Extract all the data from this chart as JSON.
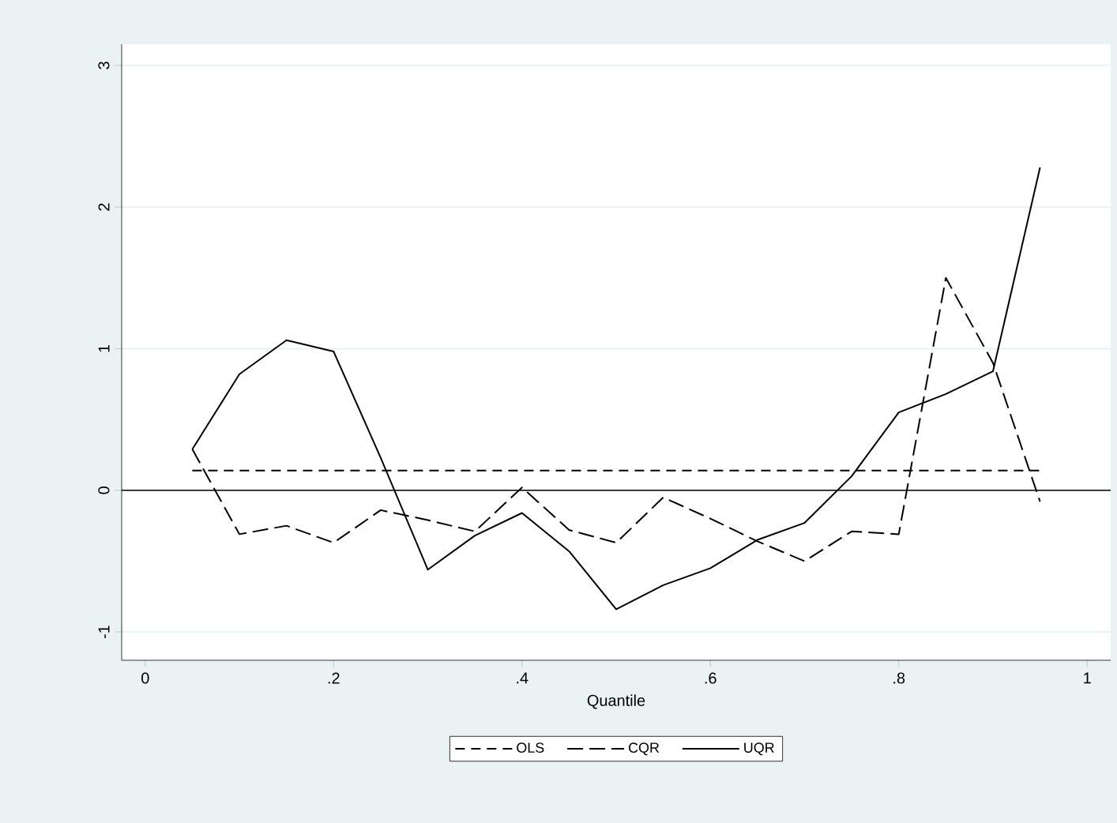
{
  "chart_data": {
    "type": "line",
    "xlabel": "Quantile",
    "x": [
      0.05,
      0.1,
      0.15,
      0.2,
      0.25,
      0.3,
      0.35,
      0.4,
      0.45,
      0.5,
      0.55,
      0.6,
      0.65,
      0.7,
      0.75,
      0.8,
      0.85,
      0.9,
      0.95
    ],
    "series": [
      {
        "name": "OLS",
        "color": "#000000",
        "line_style": "dashed",
        "values": [
          0.14,
          0.14,
          0.14,
          0.14,
          0.14,
          0.14,
          0.14,
          0.14,
          0.14,
          0.14,
          0.14,
          0.14,
          0.14,
          0.14,
          0.14,
          0.14,
          0.14,
          0.14,
          0.14
        ]
      },
      {
        "name": "CQR",
        "color": "#000000",
        "line_style": "dashed",
        "values": [
          0.29,
          -0.31,
          -0.25,
          -0.37,
          -0.14,
          -0.21,
          -0.29,
          0.02,
          -0.28,
          -0.37,
          -0.05,
          -0.2,
          -0.36,
          -0.5,
          -0.29,
          -0.31,
          1.5,
          0.9,
          -0.08
        ]
      },
      {
        "name": "UQR",
        "color": "#000000",
        "line_style": "solid",
        "values": [
          0.29,
          0.82,
          1.06,
          0.98,
          0.23,
          -0.56,
          -0.32,
          -0.16,
          -0.43,
          -0.84,
          -0.67,
          -0.55,
          -0.35,
          -0.23,
          0.1,
          0.55,
          0.68,
          0.84,
          2.28
        ]
      }
    ],
    "xlim": [
      -0.025,
      1.025
    ],
    "ylim": [
      -1.2,
      3.15
    ],
    "xticks": [
      0,
      {
        "value": 0.2,
        "label": ".2"
      },
      {
        "value": 0.4,
        "label": ".4"
      },
      {
        "value": 0.6,
        "label": ".6"
      },
      {
        "value": 0.8,
        "label": ".8"
      },
      1
    ],
    "yticks": [
      -1,
      0,
      1,
      2,
      3
    ],
    "grid": "y",
    "legend": "bottom",
    "marker": "none",
    "ref_lines": [
      {
        "axis": "y",
        "value": 0,
        "color": "#000000"
      }
    ]
  }
}
